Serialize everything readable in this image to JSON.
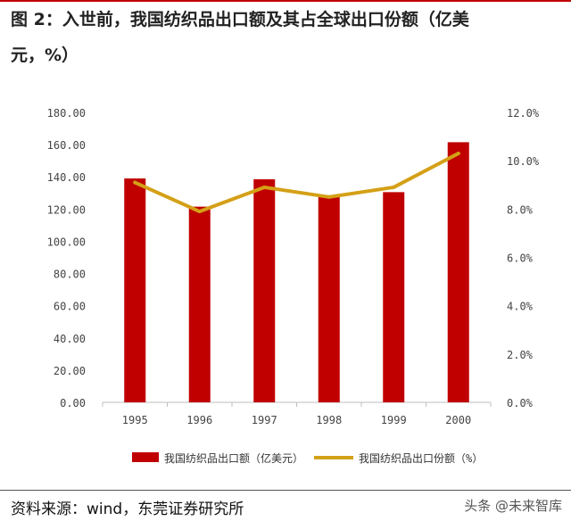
{
  "header": {
    "title_line1": "图 2：入世前，我国纺织品出口额及其占全球出口份额（亿美",
    "title_line2": "元，%）"
  },
  "chart_data": {
    "type": "bar",
    "categories": [
      "1995",
      "1996",
      "1997",
      "1998",
      "1999",
      "2000"
    ],
    "series": [
      {
        "name": "我国纺织品出口额（亿美元）",
        "type": "bar",
        "axis": "left",
        "color": "#c00000",
        "values": [
          139.0,
          121.5,
          138.5,
          128.5,
          130.5,
          161.5
        ]
      },
      {
        "name": "我国纺织品出口份额（%）",
        "type": "line",
        "axis": "right",
        "color": "#d4a017",
        "values": [
          9.1,
          7.9,
          8.9,
          8.5,
          8.9,
          10.3
        ]
      }
    ],
    "left_axis": {
      "min": 0,
      "max": 180,
      "step": 20,
      "tick_labels": [
        "0.00",
        "20.00",
        "40.00",
        "60.00",
        "80.00",
        "100.00",
        "120.00",
        "140.00",
        "160.00",
        "180.00"
      ]
    },
    "right_axis": {
      "min": 0,
      "max": 12,
      "step": 2,
      "tick_labels": [
        "0.0%",
        "2.0%",
        "4.0%",
        "6.0%",
        "8.0%",
        "10.0%",
        "12.0%"
      ]
    },
    "grid": false,
    "legend_position": "bottom"
  },
  "footer": {
    "source": "资料来源：wind，东莞证券研究所",
    "watermark": "头条 @未来智库"
  }
}
